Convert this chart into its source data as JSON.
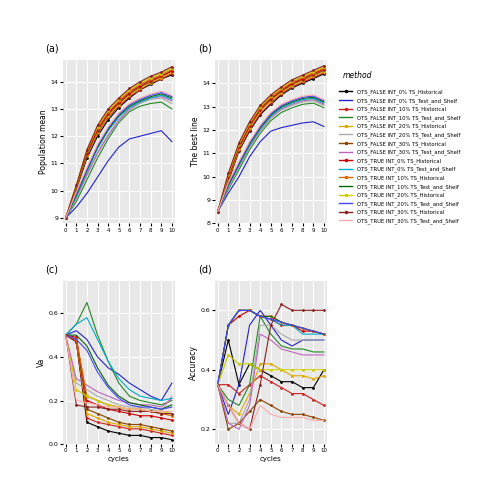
{
  "cycles": [
    0,
    1,
    2,
    3,
    4,
    5,
    6,
    7,
    8,
    9,
    10
  ],
  "methods": [
    "OTS_FALSE_INT_0%_TS_Historical",
    "OTS_FALSE_INT_0%_TS_Test_and_Shelf",
    "OTS_FALSE_INT_10%_TS_Historical",
    "OTS_FALSE_INT_10%_TS_Test_and_Shelf",
    "OTS_FALSE_INT_20%_TS_Historical",
    "OTS_FALSE_INT_20%_TS_Test_and_Shelf",
    "OTS_FALSE_INT_30%_TS_Historical",
    "OTS_FALSE_INT_30%_TS_Test_and_Shelf",
    "OTS_TRUE_INT_0%_TS_Historical",
    "OTS_TRUE_INT_0%_TS_Test_and_Shelf",
    "OTS_TRUE_INT_10%_TS_Historical",
    "OTS_TRUE_INT_10%_TS_Test_and_Shelf",
    "OTS_TRUE_INT_20%_TS_Historical",
    "OTS_TRUE_INT_20%_TS_Test_and_Shelf",
    "OTS_TRUE_INT_30%_TS_Historical",
    "OTS_TRUE_INT_30%_TS_Test_and_Shelf"
  ],
  "colors": [
    "#000000",
    "#2222cc",
    "#cc2222",
    "#228822",
    "#ddaa00",
    "#aaaaaa",
    "#884400",
    "#bb66bb",
    "#cc0000",
    "#00aacc",
    "#dd6600",
    "#006600",
    "#cccc00",
    "#4444ff",
    "#882222",
    "#ffaaaa"
  ],
  "pop_mean": [
    [
      9.0,
      10.05,
      11.2,
      12.0,
      12.6,
      13.05,
      13.4,
      13.7,
      13.9,
      14.1,
      14.25
    ],
    [
      9.0,
      9.4,
      9.9,
      10.5,
      11.1,
      11.6,
      11.9,
      12.0,
      12.1,
      12.2,
      11.8
    ],
    [
      9.0,
      10.1,
      11.3,
      12.1,
      12.7,
      13.1,
      13.45,
      13.7,
      13.95,
      14.1,
      14.3
    ],
    [
      9.0,
      9.6,
      10.4,
      11.2,
      11.9,
      12.5,
      12.9,
      13.1,
      13.2,
      13.25,
      13.0
    ],
    [
      9.0,
      10.1,
      11.3,
      12.15,
      12.75,
      13.15,
      13.5,
      13.75,
      13.95,
      14.15,
      14.35
    ],
    [
      9.0,
      9.7,
      10.55,
      11.35,
      12.0,
      12.55,
      12.95,
      13.2,
      13.35,
      13.4,
      13.2
    ],
    [
      9.0,
      10.1,
      11.35,
      12.2,
      12.8,
      13.2,
      13.55,
      13.8,
      14.0,
      14.2,
      14.4
    ],
    [
      9.0,
      9.75,
      10.6,
      11.4,
      12.05,
      12.6,
      13.0,
      13.25,
      13.4,
      13.45,
      13.3
    ],
    [
      9.0,
      10.15,
      11.4,
      12.25,
      12.85,
      13.25,
      13.6,
      13.85,
      14.05,
      14.2,
      14.4
    ],
    [
      9.0,
      9.8,
      10.7,
      11.55,
      12.2,
      12.7,
      13.05,
      13.25,
      13.4,
      13.5,
      13.35
    ],
    [
      9.0,
      10.15,
      11.45,
      12.3,
      12.9,
      13.3,
      13.65,
      13.9,
      14.1,
      14.25,
      14.45
    ],
    [
      9.0,
      9.85,
      10.75,
      11.6,
      12.25,
      12.75,
      13.1,
      13.3,
      13.45,
      13.55,
      13.4
    ],
    [
      9.0,
      10.2,
      11.5,
      12.35,
      12.95,
      13.35,
      13.7,
      13.95,
      14.15,
      14.3,
      14.5
    ],
    [
      9.0,
      9.9,
      10.8,
      11.65,
      12.3,
      12.8,
      13.15,
      13.35,
      13.5,
      13.6,
      13.45
    ],
    [
      9.0,
      10.2,
      11.5,
      12.4,
      13.0,
      13.4,
      13.75,
      14.0,
      14.2,
      14.35,
      14.55
    ],
    [
      9.0,
      9.95,
      10.85,
      11.7,
      12.35,
      12.85,
      13.2,
      13.4,
      13.55,
      13.65,
      13.5
    ]
  ],
  "best_line": [
    [
      8.5,
      9.8,
      11.1,
      11.95,
      12.65,
      13.1,
      13.5,
      13.8,
      14.0,
      14.2,
      14.4
    ],
    [
      8.5,
      9.3,
      10.0,
      10.85,
      11.5,
      11.95,
      12.1,
      12.2,
      12.3,
      12.35,
      12.15
    ],
    [
      8.5,
      9.85,
      11.15,
      12.0,
      12.7,
      13.15,
      13.55,
      13.85,
      14.05,
      14.25,
      14.45
    ],
    [
      8.5,
      9.45,
      10.3,
      11.15,
      11.85,
      12.4,
      12.75,
      12.95,
      13.1,
      13.15,
      12.95
    ],
    [
      8.5,
      9.9,
      11.2,
      12.1,
      12.8,
      13.25,
      13.6,
      13.9,
      14.1,
      14.3,
      14.5
    ],
    [
      8.5,
      9.5,
      10.4,
      11.25,
      11.95,
      12.5,
      12.85,
      13.05,
      13.2,
      13.25,
      13.05
    ],
    [
      8.5,
      9.95,
      11.25,
      12.15,
      12.85,
      13.3,
      13.65,
      13.95,
      14.15,
      14.35,
      14.55
    ],
    [
      8.5,
      9.55,
      10.45,
      11.3,
      12.0,
      12.55,
      12.9,
      13.1,
      13.25,
      13.3,
      13.1
    ],
    [
      8.5,
      10.0,
      11.3,
      12.2,
      12.9,
      13.35,
      13.7,
      14.0,
      14.2,
      14.4,
      14.6
    ],
    [
      8.5,
      9.6,
      10.5,
      11.35,
      12.05,
      12.6,
      12.95,
      13.15,
      13.3,
      13.35,
      13.15
    ],
    [
      8.5,
      10.05,
      11.35,
      12.25,
      12.95,
      13.4,
      13.75,
      14.05,
      14.25,
      14.45,
      14.65
    ],
    [
      8.5,
      9.65,
      10.55,
      11.4,
      12.1,
      12.65,
      13.0,
      13.2,
      13.35,
      13.4,
      13.2
    ],
    [
      8.5,
      10.1,
      11.4,
      12.3,
      13.0,
      13.45,
      13.8,
      14.1,
      14.3,
      14.5,
      14.7
    ],
    [
      8.5,
      9.7,
      10.6,
      11.45,
      12.15,
      12.7,
      13.05,
      13.25,
      13.4,
      13.45,
      13.25
    ],
    [
      8.5,
      10.15,
      11.45,
      12.35,
      13.05,
      13.5,
      13.85,
      14.15,
      14.35,
      14.55,
      14.75
    ],
    [
      8.5,
      9.75,
      10.65,
      11.5,
      12.2,
      12.75,
      13.1,
      13.3,
      13.45,
      13.5,
      13.3
    ]
  ],
  "va": [
    [
      0.5,
      0.47,
      0.1,
      0.08,
      0.06,
      0.05,
      0.04,
      0.04,
      0.03,
      0.03,
      0.02
    ],
    [
      0.5,
      0.52,
      0.48,
      0.4,
      0.35,
      0.32,
      0.28,
      0.25,
      0.22,
      0.2,
      0.28
    ],
    [
      0.5,
      0.47,
      0.12,
      0.1,
      0.09,
      0.08,
      0.07,
      0.07,
      0.06,
      0.05,
      0.04
    ],
    [
      0.5,
      0.55,
      0.65,
      0.5,
      0.38,
      0.28,
      0.22,
      0.2,
      0.19,
      0.18,
      0.2
    ],
    [
      0.5,
      0.48,
      0.14,
      0.12,
      0.1,
      0.09,
      0.08,
      0.08,
      0.07,
      0.06,
      0.05
    ],
    [
      0.5,
      0.28,
      0.25,
      0.22,
      0.2,
      0.18,
      0.17,
      0.17,
      0.16,
      0.15,
      0.22
    ],
    [
      0.5,
      0.48,
      0.16,
      0.14,
      0.12,
      0.1,
      0.09,
      0.09,
      0.08,
      0.07,
      0.06
    ],
    [
      0.5,
      0.3,
      0.27,
      0.24,
      0.22,
      0.2,
      0.19,
      0.18,
      0.18,
      0.17,
      0.21
    ],
    [
      0.5,
      0.49,
      0.2,
      0.18,
      0.16,
      0.15,
      0.14,
      0.13,
      0.13,
      0.12,
      0.11
    ],
    [
      0.5,
      0.55,
      0.58,
      0.48,
      0.38,
      0.3,
      0.25,
      0.22,
      0.21,
      0.2,
      0.21
    ],
    [
      0.5,
      0.48,
      0.22,
      0.2,
      0.18,
      0.17,
      0.16,
      0.16,
      0.15,
      0.14,
      0.13
    ],
    [
      0.5,
      0.5,
      0.45,
      0.35,
      0.27,
      0.22,
      0.19,
      0.18,
      0.17,
      0.16,
      0.18
    ],
    [
      0.5,
      0.25,
      0.22,
      0.2,
      0.18,
      0.17,
      0.16,
      0.16,
      0.15,
      0.15,
      0.14
    ],
    [
      0.5,
      0.48,
      0.43,
      0.33,
      0.26,
      0.21,
      0.18,
      0.17,
      0.17,
      0.16,
      0.17
    ],
    [
      0.5,
      0.18,
      0.17,
      0.17,
      0.16,
      0.16,
      0.15,
      0.15,
      0.15,
      0.14,
      0.14
    ],
    [
      0.5,
      0.2,
      0.19,
      0.18,
      0.17,
      0.17,
      0.16,
      0.16,
      0.15,
      0.15,
      0.15
    ]
  ],
  "accuracy": [
    [
      0.35,
      0.5,
      0.35,
      0.42,
      0.4,
      0.38,
      0.36,
      0.36,
      0.34,
      0.34,
      0.4
    ],
    [
      0.35,
      0.25,
      0.35,
      0.55,
      0.6,
      0.55,
      0.5,
      0.48,
      0.5,
      0.5,
      0.5
    ],
    [
      0.35,
      0.35,
      0.32,
      0.35,
      0.38,
      0.36,
      0.34,
      0.32,
      0.32,
      0.3,
      0.28
    ],
    [
      0.35,
      0.3,
      0.28,
      0.35,
      0.58,
      0.52,
      0.48,
      0.47,
      0.47,
      0.46,
      0.46
    ],
    [
      0.35,
      0.28,
      0.25,
      0.32,
      0.42,
      0.42,
      0.4,
      0.38,
      0.38,
      0.37,
      0.38
    ],
    [
      0.35,
      0.22,
      0.22,
      0.3,
      0.55,
      0.55,
      0.52,
      0.5,
      0.5,
      0.5,
      0.5
    ],
    [
      0.35,
      0.2,
      0.22,
      0.26,
      0.3,
      0.28,
      0.26,
      0.25,
      0.25,
      0.24,
      0.23
    ],
    [
      0.35,
      0.22,
      0.2,
      0.28,
      0.52,
      0.5,
      0.47,
      0.46,
      0.45,
      0.45,
      0.45
    ],
    [
      0.35,
      0.55,
      0.58,
      0.6,
      0.58,
      0.57,
      0.55,
      0.55,
      0.53,
      0.53,
      0.52
    ],
    [
      0.35,
      0.55,
      0.6,
      0.6,
      0.58,
      0.57,
      0.55,
      0.55,
      0.52,
      0.52,
      0.52
    ],
    [
      0.35,
      0.55,
      0.6,
      0.6,
      0.58,
      0.58,
      0.56,
      0.55,
      0.54,
      0.53,
      0.52
    ],
    [
      0.35,
      0.55,
      0.6,
      0.6,
      0.58,
      0.58,
      0.56,
      0.55,
      0.54,
      0.53,
      0.52
    ],
    [
      0.35,
      0.45,
      0.42,
      0.42,
      0.4,
      0.4,
      0.4,
      0.4,
      0.4,
      0.4,
      0.4
    ],
    [
      0.35,
      0.55,
      0.6,
      0.6,
      0.58,
      0.57,
      0.56,
      0.55,
      0.54,
      0.53,
      0.52
    ],
    [
      0.35,
      0.28,
      0.22,
      0.2,
      0.35,
      0.55,
      0.62,
      0.6,
      0.6,
      0.6,
      0.6
    ],
    [
      0.35,
      0.28,
      0.22,
      0.2,
      0.28,
      0.25,
      0.24,
      0.24,
      0.24,
      0.23,
      0.23
    ]
  ],
  "legend_labels": [
    "OTS_FALSE INT_0% TS_Historical",
    "OTS_FALSE INT_0% TS_Test_and_Shelf",
    "OTS_FALSE INT_10% TS_Historical",
    "OTS_FALSE INT_10% TS_Test_and_Shelf",
    "OTS_FALSE INT_20% TS_Historical",
    "OTS_FALSE INT_20% TS_Test_and_Shelf",
    "OTS_FALSE INT_30% TS_Historical",
    "OTS_FALSE INT_30% TS_Test_and_Shelf",
    "OTS_TRUE INT_0% TS_Historical",
    "OTS_TRUE INT_0% TS_Test_and_Shelf",
    "OTS_TRUE INT_10% TS_Historical",
    "OTS_TRUE INT_10% TS_Test_and_Shelf",
    "OTS_TRUE INT_20% TS_Historical",
    "OTS_TRUE INT_20% TS_Test_and_Shelf",
    "OTS_TRUE INT_30% TS_Historical",
    "OTS_TRUE INT_30% TS_Test_and_Shelf"
  ],
  "bg_color": "#e8e8e8",
  "grid_color": "#ffffff"
}
